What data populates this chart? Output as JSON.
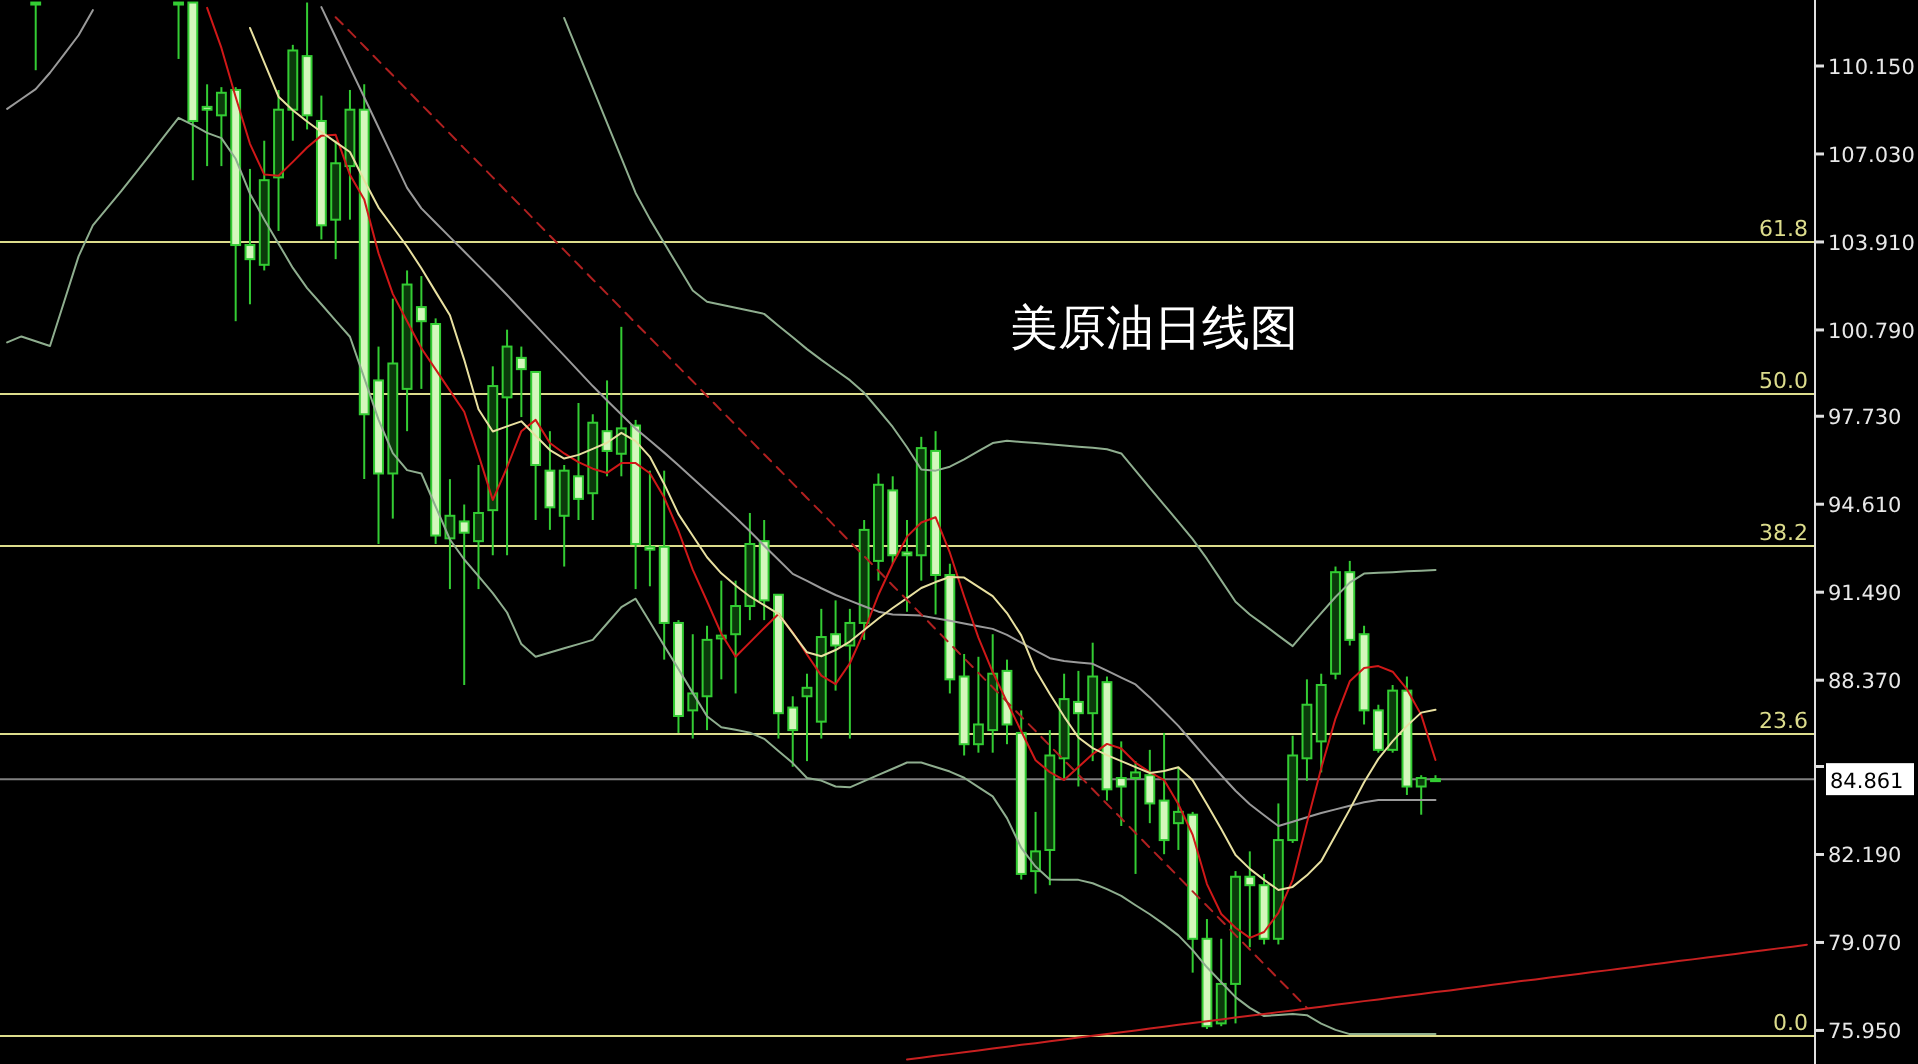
{
  "chart_data": {
    "type": "candlestick",
    "title": "美原油日线图",
    "color": "#33cc33",
    "tick_labels": "y",
    "ylim": [
      74.76,
      112.49
    ],
    "yticks": [
      {
        "value": 110.15,
        "label": "110.150"
      },
      {
        "value": 107.03,
        "label": "107.030"
      },
      {
        "value": 103.91,
        "label": "103.910"
      },
      {
        "value": 100.79,
        "label": "100.790"
      },
      {
        "value": 97.73,
        "label": "97.730"
      },
      {
        "value": 94.61,
        "label": "94.610"
      },
      {
        "value": 91.49,
        "label": "91.490"
      },
      {
        "value": 88.37,
        "label": "88.370"
      },
      {
        "value": 85.31,
        "label": null
      },
      {
        "value": 82.19,
        "label": "82.190"
      },
      {
        "value": 79.07,
        "label": "79.070"
      },
      {
        "value": 75.95,
        "label": "75.950"
      }
    ],
    "categories": [
      null,
      null,
      null,
      null,
      null,
      null,
      null,
      null,
      null,
      null,
      null,
      null,
      null,
      null,
      null,
      null,
      null,
      null,
      null,
      null,
      null,
      null,
      null,
      null,
      null,
      null,
      null,
      null,
      null,
      null,
      null,
      null,
      null,
      null,
      null,
      null,
      null,
      null,
      null,
      null,
      null,
      null,
      null,
      null,
      null,
      null,
      null,
      null,
      null,
      null,
      null,
      null,
      null,
      null,
      null,
      null,
      null,
      null,
      null,
      null,
      null,
      null,
      null,
      null,
      null,
      null,
      null,
      null,
      null,
      null,
      null,
      null,
      null,
      null,
      null,
      null,
      null,
      null,
      null,
      null,
      null,
      null,
      null,
      null,
      null,
      null,
      null,
      null,
      null,
      null,
      null,
      null,
      null,
      null,
      null,
      null,
      null,
      null,
      null,
      null,
      null,
      null,
      null,
      null,
      null,
      null,
      null,
      null,
      null,
      null,
      null,
      null,
      null,
      null,
      null,
      null,
      null,
      null,
      null,
      null,
      null,
      null,
      null,
      null,
      null,
      null,
      null
    ],
    "ohlc": [
      null,
      null,
      [
        112.4,
        112.4,
        110.0,
        112.4
      ],
      null,
      null,
      null,
      null,
      null,
      null,
      null,
      null,
      null,
      [
        112.4,
        112.4,
        110.4,
        112.4
      ],
      [
        112.4,
        112.4,
        106.1,
        108.2
      ],
      [
        108.7,
        109.5,
        106.6,
        108.6
      ],
      [
        108.4,
        109.4,
        106.6,
        109.2
      ],
      [
        109.3,
        109.4,
        101.1,
        103.8
      ],
      [
        103.8,
        106.5,
        101.7,
        103.3
      ],
      [
        103.1,
        107.5,
        102.9,
        106.1
      ],
      [
        106.2,
        109.3,
        104.3,
        108.6
      ],
      [
        108.6,
        110.9,
        107.5,
        110.7
      ],
      [
        110.5,
        112.4,
        107.9,
        108.4
      ],
      [
        108.2,
        109.1,
        104.0,
        104.5
      ],
      [
        104.7,
        107.5,
        103.3,
        106.7
      ],
      [
        106.6,
        109.3,
        104.7,
        108.6
      ],
      [
        108.6,
        109.5,
        95.5,
        97.8
      ],
      [
        99.0,
        100.2,
        93.2,
        95.7
      ],
      [
        95.7,
        101.9,
        94.1,
        99.6
      ],
      [
        98.7,
        102.9,
        97.2,
        102.4
      ],
      [
        101.6,
        102.7,
        98.7,
        101.1
      ],
      [
        101.0,
        101.2,
        93.2,
        93.5
      ],
      [
        93.4,
        95.5,
        91.6,
        94.2
      ],
      [
        94.0,
        94.6,
        88.2,
        93.6
      ],
      [
        93.3,
        96.0,
        91.6,
        94.3
      ],
      [
        94.4,
        99.5,
        92.8,
        98.8
      ],
      [
        98.4,
        100.8,
        92.8,
        100.2
      ],
      [
        99.8,
        100.2,
        97.7,
        99.4
      ],
      [
        99.3,
        99.3,
        94.05,
        96.0
      ],
      [
        95.8,
        97.2,
        93.7,
        94.5
      ],
      [
        94.2,
        96.0,
        92.4,
        95.8
      ],
      [
        95.6,
        98.2,
        94.05,
        94.8
      ],
      [
        95.0,
        97.8,
        94.05,
        97.5
      ],
      [
        97.2,
        99.0,
        95.6,
        96.5
      ],
      [
        96.4,
        100.9,
        95.6,
        97.3
      ],
      [
        97.4,
        97.6,
        91.6,
        93.2
      ],
      [
        93.1,
        95.8,
        91.7,
        93.0
      ],
      [
        93.1,
        95.8,
        89.1,
        90.4
      ],
      [
        90.4,
        90.5,
        86.5,
        87.1
      ],
      [
        87.3,
        90.0,
        86.3,
        87.9
      ],
      [
        87.8,
        90.3,
        86.6,
        89.8
      ],
      [
        89.85,
        91.9,
        88.4,
        89.95
      ],
      [
        90.0,
        91.9,
        87.9,
        91.0
      ],
      [
        91.0,
        94.3,
        90.5,
        93.2
      ],
      [
        93.3,
        94.05,
        90.5,
        91.2
      ],
      [
        91.4,
        91.4,
        86.3,
        87.2
      ],
      [
        87.4,
        87.8,
        85.3,
        86.6
      ],
      [
        87.8,
        88.6,
        85.5,
        88.1
      ],
      [
        86.9,
        90.9,
        86.3,
        89.9
      ],
      [
        90.0,
        91.2,
        88.0,
        89.6
      ],
      [
        89.6,
        90.9,
        86.3,
        90.4
      ],
      [
        90.4,
        94.05,
        89.8,
        93.7
      ],
      [
        92.6,
        95.7,
        91.9,
        95.3
      ],
      [
        95.1,
        95.6,
        92.5,
        92.8
      ],
      [
        92.9,
        94.05,
        90.8,
        92.8
      ],
      [
        92.8,
        97.0,
        91.9,
        96.6
      ],
      [
        96.5,
        97.2,
        90.7,
        92.1
      ],
      [
        92.1,
        92.5,
        87.9,
        88.4
      ],
      [
        88.5,
        89.3,
        85.7,
        86.1
      ],
      [
        86.1,
        89.2,
        85.8,
        86.8
      ],
      [
        86.6,
        90.0,
        85.8,
        88.6
      ],
      [
        88.7,
        89.1,
        86.1,
        86.8
      ],
      [
        86.5,
        87.3,
        81.3,
        81.5
      ],
      [
        81.6,
        83.7,
        80.8,
        82.3
      ],
      [
        82.35,
        86.6,
        81.1,
        85.7
      ],
      [
        85.6,
        88.6,
        84.9,
        87.7
      ],
      [
        87.6,
        88.7,
        84.6,
        87.2
      ],
      [
        87.2,
        89.7,
        85.5,
        88.5
      ],
      [
        88.3,
        88.5,
        84.1,
        84.5
      ],
      [
        84.9,
        86.2,
        83.2,
        84.6
      ],
      [
        84.9,
        85.5,
        81.5,
        85.1
      ],
      [
        85.0,
        85.9,
        83.3,
        84.0
      ],
      [
        84.1,
        86.5,
        82.2,
        82.7
      ],
      [
        83.3,
        85.3,
        82.35,
        83.7
      ],
      [
        83.6,
        83.7,
        78.0,
        79.2
      ],
      [
        79.2,
        79.9,
        76.0,
        76.1
      ],
      [
        76.2,
        79.2,
        76.1,
        77.6
      ],
      [
        77.6,
        81.6,
        76.2,
        81.4
      ],
      [
        81.4,
        82.3,
        78.9,
        81.1
      ],
      [
        81.1,
        81.5,
        79.0,
        79.2
      ],
      [
        79.2,
        84.0,
        79.0,
        82.7
      ],
      [
        82.7,
        86.4,
        82.6,
        85.7
      ],
      [
        85.6,
        88.4,
        84.8,
        87.5
      ],
      [
        86.2,
        88.6,
        85.1,
        88.2
      ],
      [
        88.6,
        92.4,
        88.4,
        92.2
      ],
      [
        92.2,
        92.6,
        89.6,
        89.8
      ],
      [
        90.0,
        90.3,
        86.8,
        87.3
      ],
      [
        87.3,
        87.5,
        85.8,
        85.9
      ],
      [
        85.9,
        88.2,
        85.8,
        88.0
      ],
      [
        88.0,
        88.5,
        84.3,
        84.6
      ],
      [
        84.6,
        85.0,
        83.6,
        84.9
      ],
      [
        84.85,
        85.0,
        84.8,
        84.861
      ],
      null,
      null,
      null,
      null,
      null,
      null,
      null,
      null,
      null,
      null,
      null,
      null,
      null,
      null,
      null,
      null,
      null,
      null,
      null,
      null,
      null,
      null,
      null,
      null,
      null,
      null
    ],
    "series": [
      {
        "type": "line",
        "color": "#8fae8f",
        "values": [
          null,
          null,
          null,
          null,
          null,
          null,
          null,
          null,
          null,
          null,
          null,
          null,
          null,
          null,
          null,
          null,
          null,
          null,
          null,
          null,
          null,
          null,
          null,
          null,
          null,
          null,
          null,
          null,
          null,
          null,
          null,
          null,
          null,
          null,
          null,
          null,
          null,
          null,
          null,
          111.85,
          110.61,
          109.37,
          108.13,
          106.89,
          105.65,
          104.72,
          103.87,
          103.03,
          102.19,
          101.79,
          101.68,
          101.58,
          101.47,
          101.36,
          100.94,
          100.53,
          100.11,
          99.73,
          99.37,
          99.01,
          98.56,
          97.96,
          97.35,
          96.63,
          95.84,
          95.8,
          95.94,
          96.2,
          96.49,
          96.78,
          96.86,
          96.82,
          96.78,
          96.74,
          96.69,
          96.65,
          96.61,
          96.56,
          96.41,
          95.8,
          95.19,
          94.59,
          93.98,
          93.37,
          92.67,
          91.91,
          91.15,
          90.7,
          90.33,
          89.95,
          89.58,
          90.17,
          90.75,
          91.32,
          91.83,
          92.15,
          92.18,
          92.2,
          92.23,
          92.25,
          92.28,
          null,
          null,
          null,
          null,
          null,
          null,
          null,
          null,
          null,
          null,
          null,
          null,
          null,
          null,
          null,
          null,
          null,
          null,
          null,
          null,
          null,
          null,
          null,
          null,
          null,
          null
        ]
      },
      {
        "type": "line",
        "color": "#9a9a9a",
        "values": [
          108.63,
          108.98,
          109.33,
          109.91,
          110.57,
          111.24,
          112.13,
          null,
          null,
          null,
          null,
          null,
          null,
          null,
          null,
          null,
          null,
          null,
          null,
          null,
          null,
          null,
          112.24,
          111.17,
          110.1,
          109.04,
          107.97,
          106.9,
          105.83,
          105.1,
          104.59,
          104.08,
          103.57,
          103.06,
          102.55,
          102.03,
          101.49,
          100.95,
          100.41,
          99.88,
          99.34,
          98.8,
          98.29,
          97.79,
          97.29,
          96.87,
          96.44,
          95.99,
          95.53,
          95.07,
          94.61,
          94.14,
          93.65,
          93.14,
          92.64,
          92.14,
          91.89,
          91.63,
          91.39,
          91.19,
          90.99,
          90.8,
          90.7,
          90.68,
          90.66,
          90.57,
          90.48,
          90.38,
          90.28,
          90.19,
          89.98,
          89.7,
          89.42,
          89.15,
          89.05,
          89.0,
          88.95,
          88.71,
          88.46,
          88.22,
          87.76,
          87.26,
          86.75,
          86.16,
          85.57,
          85.0,
          84.45,
          83.97,
          83.58,
          83.2,
          83.35,
          83.51,
          83.66,
          83.79,
          83.92,
          84.04,
          84.12,
          84.12,
          84.12,
          84.12,
          84.12,
          null,
          null,
          null,
          null,
          null,
          null,
          null,
          null,
          null,
          null,
          null,
          null,
          null,
          null,
          null,
          null,
          null,
          null,
          null,
          null,
          null,
          null,
          null,
          null,
          null,
          null
        ]
      },
      {
        "type": "line",
        "color": "#8fae8f",
        "values": [
          100.35,
          100.56,
          100.39,
          100.22,
          101.81,
          103.4,
          104.5,
          105.11,
          105.72,
          106.36,
          107.01,
          107.66,
          108.31,
          108.06,
          107.78,
          107.59,
          106.86,
          105.62,
          104.71,
          103.85,
          102.99,
          102.27,
          101.7,
          101.12,
          100.55,
          99.09,
          97.61,
          96.42,
          95.82,
          95.7,
          94.53,
          93.36,
          92.65,
          92.06,
          91.46,
          90.77,
          89.65,
          89.2,
          89.35,
          89.5,
          89.65,
          89.8,
          90.38,
          90.96,
          91.26,
          90.43,
          89.59,
          88.77,
          87.92,
          87.09,
          86.7,
          86.61,
          86.51,
          86.29,
          85.86,
          85.43,
          84.9,
          84.81,
          84.6,
          84.57,
          84.79,
          85.01,
          85.23,
          85.45,
          85.45,
          85.29,
          85.13,
          84.91,
          84.58,
          84.25,
          83.48,
          82.42,
          81.76,
          81.3,
          81.29,
          81.29,
          81.17,
          80.96,
          80.72,
          80.39,
          80.07,
          79.71,
          79.32,
          78.8,
          78.19,
          77.66,
          77.13,
          76.75,
          76.46,
          76.5,
          76.53,
          76.49,
          76.19,
          75.97,
          75.82,
          75.82,
          75.82,
          75.82,
          75.82,
          75.82,
          75.82,
          null,
          null,
          null,
          null,
          null,
          null,
          null,
          null,
          null,
          null,
          null,
          null,
          null,
          null,
          null,
          null,
          null,
          null,
          null,
          null,
          null,
          null,
          null,
          null,
          null,
          null
        ]
      },
      {
        "type": "line",
        "color": "#d01818",
        "values": [
          null,
          null,
          null,
          null,
          null,
          null,
          null,
          null,
          null,
          null,
          null,
          null,
          null,
          null,
          112.21,
          110.79,
          109.05,
          107.39,
          106.3,
          106.26,
          106.75,
          107.26,
          107.68,
          107.71,
          106.29,
          105.42,
          103.51,
          102.07,
          101.1,
          100.14,
          99.39,
          98.64,
          97.89,
          96.36,
          94.76,
          95.92,
          97.2,
          97.6,
          96.78,
          96.41,
          96.1,
          95.87,
          95.72,
          96.07,
          96.07,
          95.71,
          94.85,
          93.67,
          92.29,
          91.17,
          90.02,
          89.2,
          89.71,
          90.22,
          90.72,
          90.06,
          89.28,
          88.53,
          88.23,
          88.97,
          90.1,
          91.4,
          92.5,
          93.46,
          93.96,
          94.15,
          92.89,
          91.34,
          89.88,
          88.66,
          87.6,
          86.56,
          85.53,
          85.11,
          84.83,
          85.29,
          85.75,
          86.11,
          85.95,
          85.44,
          85.11,
          84.83,
          83.97,
          82.89,
          81.14,
          80.08,
          79.59,
          79.23,
          79.44,
          80.12,
          81.29,
          83.31,
          85.25,
          87.01,
          88.33,
          88.8,
          88.87,
          88.67,
          88.05,
          87.14,
          85.54,
          null,
          null,
          null,
          null,
          null,
          null,
          null,
          null,
          null,
          null,
          null,
          null,
          null,
          null,
          null,
          null,
          null,
          null,
          null,
          null,
          null,
          null,
          null,
          null,
          null,
          null
        ]
      },
      {
        "type": "line",
        "color": "#e8e0a0",
        "values": [
          null,
          null,
          null,
          null,
          null,
          null,
          null,
          null,
          null,
          null,
          null,
          null,
          null,
          null,
          null,
          null,
          null,
          111.5,
          110.28,
          109.06,
          108.58,
          108.18,
          107.81,
          107.45,
          107.1,
          106.1,
          105.13,
          104.44,
          103.75,
          102.98,
          102.14,
          101.31,
          99.73,
          97.98,
          97.19,
          97.37,
          97.55,
          97.04,
          96.53,
          96.23,
          96.36,
          96.57,
          96.79,
          97.14,
          96.85,
          96.29,
          95.33,
          94.26,
          93.49,
          92.73,
          92.16,
          91.73,
          91.34,
          91.03,
          90.72,
          90.04,
          89.36,
          89.22,
          89.44,
          89.74,
          90.15,
          90.56,
          90.93,
          91.28,
          91.64,
          91.85,
          92.03,
          92.01,
          91.68,
          91.35,
          90.75,
          89.96,
          88.73,
          87.88,
          87.08,
          86.34,
          85.96,
          85.71,
          85.5,
          85.29,
          85.08,
          85.15,
          85.28,
          84.82,
          83.97,
          83.09,
          82.17,
          81.68,
          81.29,
          80.93,
          81.04,
          81.45,
          81.96,
          82.87,
          83.79,
          84.75,
          85.58,
          86.21,
          86.75,
          87.22,
          87.32,
          null,
          null,
          null,
          null,
          null,
          null,
          null,
          null,
          null,
          null,
          null,
          null,
          null,
          null,
          null,
          null,
          null,
          null,
          null,
          null,
          null,
          null,
          null,
          null,
          null,
          null
        ]
      },
      {
        "type": "line",
        "color": "#b02020",
        "line_style": "dashed",
        "values": [
          null,
          null,
          null,
          null,
          null,
          null,
          null,
          null,
          null,
          null,
          null,
          null,
          null,
          null,
          null,
          null,
          null,
          null,
          null,
          null,
          null,
          null,
          null,
          111.88,
          111.37,
          110.85,
          110.33,
          109.82,
          109.3,
          108.78,
          108.27,
          107.75,
          107.23,
          106.72,
          106.2,
          105.68,
          105.17,
          104.65,
          104.13,
          103.62,
          103.1,
          102.58,
          102.07,
          101.55,
          101.03,
          100.52,
          100.0,
          99.48,
          98.97,
          98.45,
          97.93,
          97.42,
          96.9,
          96.38,
          95.87,
          95.35,
          94.83,
          94.32,
          93.8,
          93.28,
          92.77,
          92.25,
          91.73,
          91.22,
          90.7,
          90.18,
          89.67,
          89.15,
          88.63,
          88.12,
          87.6,
          87.08,
          86.57,
          86.05,
          85.53,
          85.02,
          84.5,
          83.98,
          83.47,
          82.95,
          82.43,
          81.92,
          81.4,
          80.88,
          80.37,
          79.85,
          79.33,
          78.82,
          78.3,
          77.78,
          77.27,
          76.75,
          null,
          null,
          null,
          null,
          null,
          null,
          null,
          null,
          null,
          null,
          null,
          null,
          null,
          null,
          null,
          null,
          null,
          null,
          null,
          null,
          null,
          null,
          null,
          null,
          null,
          null,
          null,
          null,
          null,
          null,
          null,
          null,
          null,
          null,
          null
        ]
      },
      {
        "type": "line",
        "color": "#c82020",
        "values": [
          null,
          null,
          null,
          null,
          null,
          null,
          null,
          null,
          null,
          null,
          null,
          null,
          null,
          null,
          null,
          null,
          null,
          null,
          null,
          null,
          null,
          null,
          null,
          null,
          null,
          null,
          null,
          null,
          null,
          null,
          null,
          null,
          null,
          null,
          null,
          null,
          null,
          null,
          null,
          null,
          null,
          null,
          null,
          null,
          null,
          null,
          null,
          null,
          null,
          null,
          null,
          null,
          null,
          null,
          null,
          null,
          null,
          null,
          null,
          null,
          null,
          null,
          null,
          74.92,
          74.98,
          75.05,
          75.11,
          75.18,
          75.24,
          75.31,
          75.37,
          75.44,
          75.5,
          75.57,
          75.63,
          75.7,
          75.76,
          75.82,
          75.89,
          75.95,
          76.02,
          76.08,
          76.15,
          76.21,
          76.28,
          76.34,
          76.41,
          76.47,
          76.53,
          76.6,
          76.66,
          76.73,
          76.79,
          76.86,
          76.92,
          76.99,
          77.05,
          77.12,
          77.18,
          77.24,
          77.31,
          77.37,
          77.44,
          77.5,
          77.57,
          77.63,
          77.7,
          77.76,
          77.83,
          77.89,
          77.95,
          78.02,
          78.08,
          78.15,
          78.21,
          78.28,
          78.34,
          78.41,
          78.47,
          78.54,
          78.6,
          78.66,
          78.73,
          78.79,
          78.86,
          78.92,
          78.99
        ]
      }
    ],
    "ref_lines": [
      {
        "axis": "y",
        "value": 103.91,
        "color": "#dcdc8c"
      },
      {
        "axis": "y",
        "value": 98.52,
        "color": "#dcdc8c"
      },
      {
        "axis": "y",
        "value": 93.13,
        "color": "#dcdc8c"
      },
      {
        "axis": "y",
        "value": 86.46,
        "color": "#dcdc8c"
      },
      {
        "axis": "y",
        "value": 75.75,
        "color": "#dcdc8c"
      },
      {
        "axis": "y",
        "value": 84.861,
        "label": "84.861",
        "color": "#808080"
      }
    ],
    "annotations": [
      {
        "text": "61.8",
        "y": 103.91
      },
      {
        "text": "50.0",
        "y": 98.52
      },
      {
        "text": "38.2",
        "y": 93.13
      },
      {
        "text": "23.6",
        "y": 86.46
      },
      {
        "text": "0.0",
        "y": 75.75
      }
    ]
  }
}
